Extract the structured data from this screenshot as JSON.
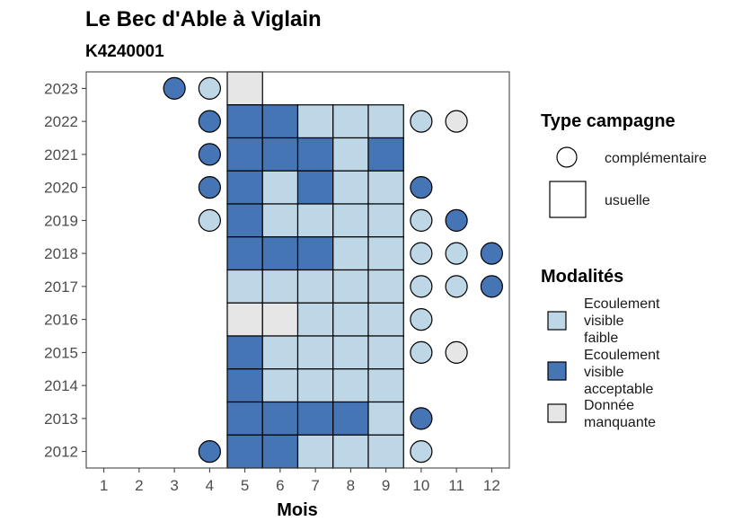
{
  "chart_data": {
    "type": "heatmap",
    "title": "Le Bec d'Able à Viglain",
    "subtitle": "K4240001",
    "xlabel": "Mois",
    "ylabel": "",
    "x_ticks": [
      1,
      2,
      3,
      4,
      5,
      6,
      7,
      8,
      9,
      10,
      11,
      12
    ],
    "y_ticks": [
      2012,
      2013,
      2014,
      2015,
      2016,
      2017,
      2018,
      2019,
      2020,
      2021,
      2022,
      2023
    ],
    "xlim": [
      0.5,
      12.5
    ],
    "ylim": [
      2011.5,
      2023.5
    ],
    "grid": false,
    "legend_placement": "right",
    "colors": {
      "faible": "#bdd7e7",
      "acceptable": "#4575b4",
      "manquante": "#e6e6e6",
      "border": "#000000",
      "panel_border": "#333333"
    },
    "shape_legend": {
      "title": "Type campagne",
      "items": [
        {
          "key": "complementaire",
          "label": "complémentaire",
          "shape": "circle"
        },
        {
          "key": "usuelle",
          "label": "usuelle",
          "shape": "square"
        }
      ]
    },
    "fill_legend": {
      "title": "Modalités",
      "items": [
        {
          "key": "faible",
          "lines": [
            "Ecoulement",
            "visible",
            "faible"
          ]
        },
        {
          "key": "acceptable",
          "lines": [
            "Ecoulement",
            "visible",
            "acceptable"
          ]
        },
        {
          "key": "manquante",
          "lines": [
            "Donnée",
            "manquante"
          ]
        }
      ]
    },
    "points": [
      {
        "year": 2023,
        "month": 3,
        "type": "complementaire",
        "value": "acceptable"
      },
      {
        "year": 2023,
        "month": 4,
        "type": "complementaire",
        "value": "faible"
      },
      {
        "year": 2023,
        "month": 5,
        "type": "usuelle",
        "value": "manquante"
      },
      {
        "year": 2022,
        "month": 4,
        "type": "complementaire",
        "value": "acceptable"
      },
      {
        "year": 2022,
        "month": 5,
        "type": "usuelle",
        "value": "acceptable"
      },
      {
        "year": 2022,
        "month": 6,
        "type": "usuelle",
        "value": "acceptable"
      },
      {
        "year": 2022,
        "month": 7,
        "type": "usuelle",
        "value": "faible"
      },
      {
        "year": 2022,
        "month": 8,
        "type": "usuelle",
        "value": "faible"
      },
      {
        "year": 2022,
        "month": 9,
        "type": "usuelle",
        "value": "faible"
      },
      {
        "year": 2022,
        "month": 10,
        "type": "complementaire",
        "value": "faible"
      },
      {
        "year": 2022,
        "month": 11,
        "type": "complementaire",
        "value": "manquante"
      },
      {
        "year": 2021,
        "month": 4,
        "type": "complementaire",
        "value": "acceptable"
      },
      {
        "year": 2021,
        "month": 5,
        "type": "usuelle",
        "value": "acceptable"
      },
      {
        "year": 2021,
        "month": 6,
        "type": "usuelle",
        "value": "acceptable"
      },
      {
        "year": 2021,
        "month": 7,
        "type": "usuelle",
        "value": "acceptable"
      },
      {
        "year": 2021,
        "month": 8,
        "type": "usuelle",
        "value": "faible"
      },
      {
        "year": 2021,
        "month": 9,
        "type": "usuelle",
        "value": "acceptable"
      },
      {
        "year": 2020,
        "month": 4,
        "type": "complementaire",
        "value": "acceptable"
      },
      {
        "year": 2020,
        "month": 5,
        "type": "usuelle",
        "value": "acceptable"
      },
      {
        "year": 2020,
        "month": 6,
        "type": "usuelle",
        "value": "faible"
      },
      {
        "year": 2020,
        "month": 7,
        "type": "usuelle",
        "value": "acceptable"
      },
      {
        "year": 2020,
        "month": 8,
        "type": "usuelle",
        "value": "faible"
      },
      {
        "year": 2020,
        "month": 9,
        "type": "usuelle",
        "value": "faible"
      },
      {
        "year": 2020,
        "month": 10,
        "type": "complementaire",
        "value": "acceptable"
      },
      {
        "year": 2019,
        "month": 4,
        "type": "complementaire",
        "value": "faible"
      },
      {
        "year": 2019,
        "month": 5,
        "type": "usuelle",
        "value": "acceptable"
      },
      {
        "year": 2019,
        "month": 6,
        "type": "usuelle",
        "value": "faible"
      },
      {
        "year": 2019,
        "month": 7,
        "type": "usuelle",
        "value": "faible"
      },
      {
        "year": 2019,
        "month": 8,
        "type": "usuelle",
        "value": "faible"
      },
      {
        "year": 2019,
        "month": 9,
        "type": "usuelle",
        "value": "faible"
      },
      {
        "year": 2019,
        "month": 10,
        "type": "complementaire",
        "value": "faible"
      },
      {
        "year": 2019,
        "month": 11,
        "type": "complementaire",
        "value": "acceptable"
      },
      {
        "year": 2018,
        "month": 5,
        "type": "usuelle",
        "value": "acceptable"
      },
      {
        "year": 2018,
        "month": 6,
        "type": "usuelle",
        "value": "acceptable"
      },
      {
        "year": 2018,
        "month": 7,
        "type": "usuelle",
        "value": "acceptable"
      },
      {
        "year": 2018,
        "month": 8,
        "type": "usuelle",
        "value": "faible"
      },
      {
        "year": 2018,
        "month": 9,
        "type": "usuelle",
        "value": "faible"
      },
      {
        "year": 2018,
        "month": 10,
        "type": "complementaire",
        "value": "faible"
      },
      {
        "year": 2018,
        "month": 11,
        "type": "complementaire",
        "value": "faible"
      },
      {
        "year": 2018,
        "month": 12,
        "type": "complementaire",
        "value": "acceptable"
      },
      {
        "year": 2017,
        "month": 5,
        "type": "usuelle",
        "value": "faible"
      },
      {
        "year": 2017,
        "month": 6,
        "type": "usuelle",
        "value": "faible"
      },
      {
        "year": 2017,
        "month": 7,
        "type": "usuelle",
        "value": "faible"
      },
      {
        "year": 2017,
        "month": 8,
        "type": "usuelle",
        "value": "faible"
      },
      {
        "year": 2017,
        "month": 9,
        "type": "usuelle",
        "value": "faible"
      },
      {
        "year": 2017,
        "month": 10,
        "type": "complementaire",
        "value": "faible"
      },
      {
        "year": 2017,
        "month": 11,
        "type": "complementaire",
        "value": "faible"
      },
      {
        "year": 2017,
        "month": 12,
        "type": "complementaire",
        "value": "acceptable"
      },
      {
        "year": 2016,
        "month": 5,
        "type": "usuelle",
        "value": "manquante"
      },
      {
        "year": 2016,
        "month": 6,
        "type": "usuelle",
        "value": "manquante"
      },
      {
        "year": 2016,
        "month": 7,
        "type": "usuelle",
        "value": "faible"
      },
      {
        "year": 2016,
        "month": 8,
        "type": "usuelle",
        "value": "faible"
      },
      {
        "year": 2016,
        "month": 9,
        "type": "usuelle",
        "value": "faible"
      },
      {
        "year": 2016,
        "month": 10,
        "type": "complementaire",
        "value": "faible"
      },
      {
        "year": 2015,
        "month": 5,
        "type": "usuelle",
        "value": "acceptable"
      },
      {
        "year": 2015,
        "month": 6,
        "type": "usuelle",
        "value": "faible"
      },
      {
        "year": 2015,
        "month": 7,
        "type": "usuelle",
        "value": "faible"
      },
      {
        "year": 2015,
        "month": 8,
        "type": "usuelle",
        "value": "faible"
      },
      {
        "year": 2015,
        "month": 9,
        "type": "usuelle",
        "value": "faible"
      },
      {
        "year": 2015,
        "month": 10,
        "type": "complementaire",
        "value": "faible"
      },
      {
        "year": 2015,
        "month": 11,
        "type": "complementaire",
        "value": "manquante"
      },
      {
        "year": 2014,
        "month": 5,
        "type": "usuelle",
        "value": "acceptable"
      },
      {
        "year": 2014,
        "month": 6,
        "type": "usuelle",
        "value": "faible"
      },
      {
        "year": 2014,
        "month": 7,
        "type": "usuelle",
        "value": "faible"
      },
      {
        "year": 2014,
        "month": 8,
        "type": "usuelle",
        "value": "faible"
      },
      {
        "year": 2014,
        "month": 9,
        "type": "usuelle",
        "value": "faible"
      },
      {
        "year": 2013,
        "month": 5,
        "type": "usuelle",
        "value": "acceptable"
      },
      {
        "year": 2013,
        "month": 6,
        "type": "usuelle",
        "value": "acceptable"
      },
      {
        "year": 2013,
        "month": 7,
        "type": "usuelle",
        "value": "acceptable"
      },
      {
        "year": 2013,
        "month": 8,
        "type": "usuelle",
        "value": "acceptable"
      },
      {
        "year": 2013,
        "month": 9,
        "type": "usuelle",
        "value": "faible"
      },
      {
        "year": 2013,
        "month": 10,
        "type": "complementaire",
        "value": "acceptable"
      },
      {
        "year": 2012,
        "month": 4,
        "type": "complementaire",
        "value": "acceptable"
      },
      {
        "year": 2012,
        "month": 5,
        "type": "usuelle",
        "value": "acceptable"
      },
      {
        "year": 2012,
        "month": 6,
        "type": "usuelle",
        "value": "acceptable"
      },
      {
        "year": 2012,
        "month": 7,
        "type": "usuelle",
        "value": "faible"
      },
      {
        "year": 2012,
        "month": 8,
        "type": "usuelle",
        "value": "faible"
      },
      {
        "year": 2012,
        "month": 9,
        "type": "usuelle",
        "value": "faible"
      },
      {
        "year": 2012,
        "month": 10,
        "type": "complementaire",
        "value": "faible"
      }
    ]
  }
}
